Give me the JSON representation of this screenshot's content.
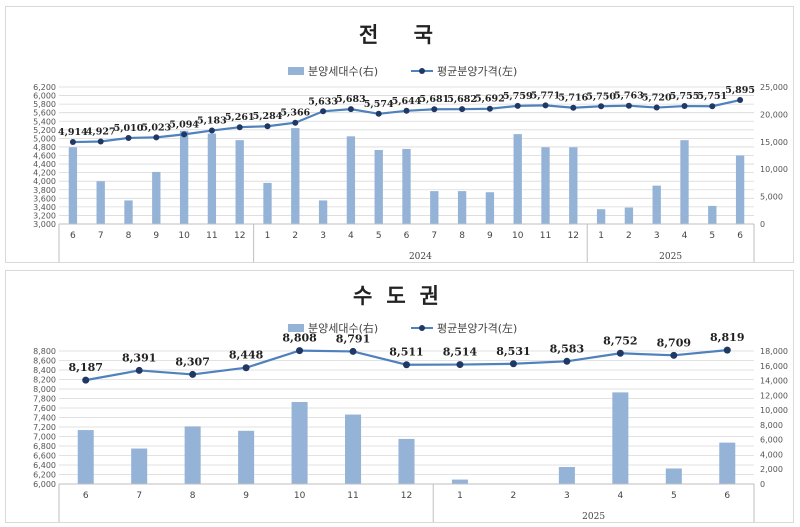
{
  "chart_data": [
    {
      "type": "bar+line",
      "title": "전 국",
      "categories": [
        "6",
        "7",
        "8",
        "9",
        "10",
        "11",
        "12",
        "1",
        "2",
        "3",
        "4",
        "5",
        "6",
        "7",
        "8",
        "9",
        "10",
        "11",
        "12",
        "1",
        "2",
        "3",
        "4",
        "5",
        "6"
      ],
      "year_labels": [
        {
          "label": "",
          "from": 0,
          "to": 6
        },
        {
          "label": "2024",
          "from": 7,
          "to": 18
        },
        {
          "label": "2025",
          "from": 19,
          "to": 24
        }
      ],
      "series": [
        {
          "name": "분양세대수(右)",
          "kind": "bar",
          "axis": "right",
          "color": "#95b3d7",
          "values": [
            14000,
            7800,
            4300,
            9500,
            17000,
            16500,
            15300,
            7500,
            17500,
            4300,
            16000,
            13500,
            13700,
            6000,
            6000,
            5800,
            16400,
            14000,
            14000,
            2700,
            3000,
            7000,
            15300,
            3300,
            12500
          ]
        },
        {
          "name": "평균분양가격(左)",
          "kind": "line",
          "axis": "left",
          "color": "#4f81bd",
          "values": [
            4914,
            4927,
            5010,
            5023,
            5094,
            5183,
            5261,
            5284,
            5366,
            5633,
            5683,
            5574,
            5644,
            5681,
            5682,
            5692,
            5759,
            5771,
            5716,
            5750,
            5763,
            5720,
            5755,
            5751,
            5895
          ],
          "labels": [
            "4,914",
            "4,927",
            "5,010",
            "5,023",
            "5,094",
            "5,183",
            "5,261",
            "5,284",
            "5,366",
            "5,633",
            "5,683",
            "5,574",
            "5,644",
            "5,681",
            "5,682",
            "5,692",
            "5,759",
            "5,771",
            "5,716",
            "5,750",
            "5,763",
            "5,720",
            "5,755",
            "5,751",
            "5,895"
          ]
        }
      ],
      "left_axis": {
        "min": 3000,
        "max": 6200,
        "step": 200,
        "ticks": [
          "3,000",
          "3,200",
          "3,400",
          "3,600",
          "3,800",
          "4,000",
          "4,200",
          "4,400",
          "4,600",
          "4,800",
          "5,000",
          "5,200",
          "5,400",
          "5,600",
          "5,800",
          "6,000",
          "6,200"
        ]
      },
      "right_axis": {
        "min": 0,
        "max": 25000,
        "step": 5000,
        "ticks": [
          "0",
          "5,000",
          "10,000",
          "15,000",
          "20,000",
          "25,000"
        ]
      },
      "grid": true,
      "legend": "top-center"
    },
    {
      "type": "bar+line",
      "title": "수도권",
      "categories": [
        "6",
        "7",
        "8",
        "9",
        "10",
        "11",
        "12",
        "1",
        "2",
        "3",
        "4",
        "5",
        "6"
      ],
      "year_labels": [
        {
          "label": "",
          "from": 0,
          "to": 6
        },
        {
          "label": "2025",
          "from": 7,
          "to": 12
        }
      ],
      "series": [
        {
          "name": "분양세대수(右)",
          "kind": "bar",
          "axis": "right",
          "color": "#95b3d7",
          "values": [
            7300,
            4800,
            7800,
            7200,
            11100,
            9400,
            6100,
            600,
            0,
            2300,
            12400,
            2100,
            5600
          ]
        },
        {
          "name": "평균분양가격(左)",
          "kind": "line",
          "axis": "left",
          "color": "#4f81bd",
          "values": [
            8187,
            8391,
            8307,
            8448,
            8808,
            8791,
            8511,
            8514,
            8531,
            8583,
            8752,
            8709,
            8819
          ],
          "labels": [
            "8,187",
            "8,391",
            "8,307",
            "8,448",
            "8,808",
            "8,791",
            "8,511",
            "8,514",
            "8,531",
            "8,583",
            "8,752",
            "8,709",
            "8,819"
          ]
        }
      ],
      "left_axis": {
        "min": 6000,
        "max": 8800,
        "step": 200,
        "ticks": [
          "6,000",
          "6,200",
          "6,400",
          "6,600",
          "6,800",
          "7,000",
          "7,200",
          "7,400",
          "7,600",
          "7,800",
          "8,000",
          "8,200",
          "8,400",
          "8,600",
          "8,800"
        ]
      },
      "right_axis": {
        "min": 0,
        "max": 18000,
        "step": 2000,
        "ticks": [
          "0",
          "2,000",
          "4,000",
          "6,000",
          "8,000",
          "10,000",
          "12,000",
          "14,000",
          "16,000",
          "18,000"
        ]
      },
      "grid": true,
      "legend": "top-center"
    }
  ]
}
